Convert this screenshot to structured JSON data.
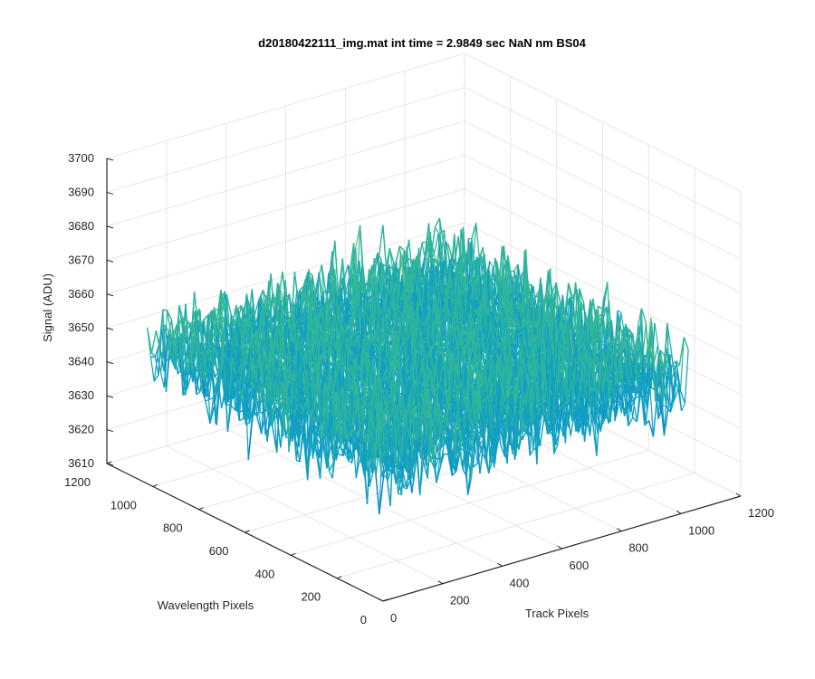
{
  "chart_data": {
    "type": "surface",
    "title": "d20180422111_img.mat int time = 2.9849 sec  NaN nm BS04",
    "xlabel": "Track Pixels",
    "ylabel": "Wavelength Pixels",
    "zlabel": "Signal (ADU)",
    "x_ticks": [
      0,
      200,
      400,
      600,
      800,
      1000,
      1200
    ],
    "y_ticks": [
      0,
      200,
      400,
      600,
      800,
      1000,
      1200
    ],
    "z_ticks": [
      3610,
      3620,
      3630,
      3640,
      3650,
      3660,
      3670,
      3680,
      3690,
      3700
    ],
    "xlim": [
      0,
      1200
    ],
    "ylim": [
      0,
      1200
    ],
    "zlim": [
      3610,
      3700
    ],
    "grid": true,
    "surface": {
      "x_range": [
        0,
        1024
      ],
      "y_range": [
        0,
        1024
      ],
      "z_mean": 3650,
      "z_min_approx": 3612,
      "z_max_approx": 3690,
      "colormap": [
        "#0f5bbd",
        "#0b7fd0",
        "#129fc2",
        "#2fb59b",
        "#86c06a",
        "#d6b53a"
      ]
    }
  }
}
